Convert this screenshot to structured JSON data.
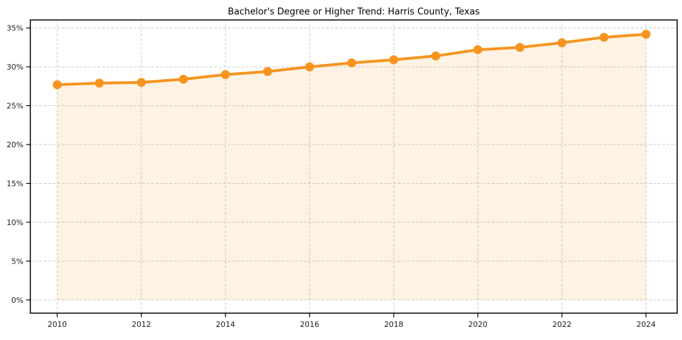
{
  "chart_data": {
    "type": "line",
    "title": "Bachelor's Degree or Higher Trend: Harris County, Texas",
    "x": [
      2010,
      2011,
      2012,
      2013,
      2014,
      2015,
      2016,
      2017,
      2018,
      2019,
      2020,
      2021,
      2022,
      2023,
      2024
    ],
    "values": [
      27.7,
      27.9,
      28.0,
      28.4,
      29.0,
      29.4,
      30.0,
      30.5,
      30.9,
      31.4,
      32.2,
      32.5,
      33.1,
      33.8,
      34.2
    ],
    "xlabel": "",
    "ylabel": "",
    "x_tick_values": [
      2010,
      2012,
      2014,
      2016,
      2018,
      2020,
      2022,
      2024
    ],
    "x_tick_labels": [
      "2010",
      "2012",
      "2014",
      "2016",
      "2018",
      "2020",
      "2022",
      "2024"
    ],
    "y_tick_values": [
      0,
      5,
      10,
      15,
      20,
      25,
      30,
      35
    ],
    "y_tick_labels": [
      "0%",
      "5%",
      "10%",
      "15%",
      "20%",
      "25%",
      "30%",
      "35%"
    ],
    "xlim": [
      2009.36,
      2024.74
    ],
    "ylim": [
      -1.7,
      36.03
    ],
    "grid": true,
    "legend": false,
    "fill_to_zero": true,
    "colors": {
      "line": "#f7941f",
      "marker": "#f7941f",
      "fill": "rgba(247, 148, 31, 0.12)",
      "grid": "#cbcbcb",
      "axis": "#000000",
      "text": "#1a1a1a",
      "title": "#000000",
      "background": "#ffffff"
    }
  }
}
